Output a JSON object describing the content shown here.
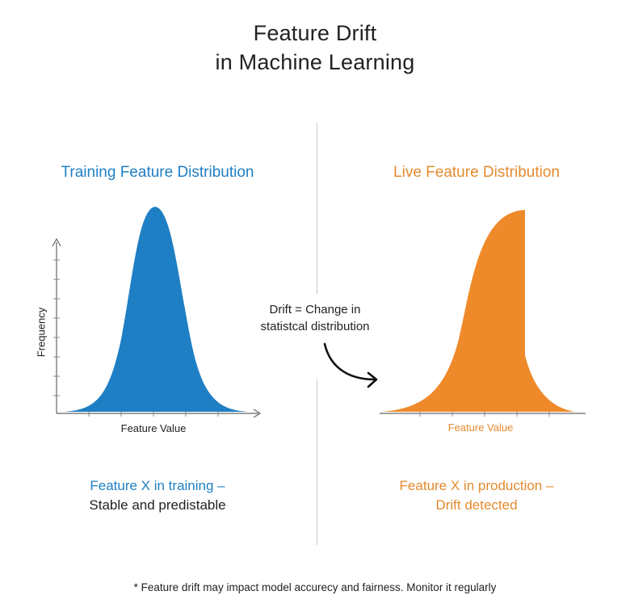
{
  "title": {
    "line1": "Feature Drift",
    "line2": "in Machine Learning"
  },
  "left_panel": {
    "title": "Training Feature Distribution",
    "y_label": "Frequency",
    "x_label": "Feature Value",
    "caption_highlight": "Feature X in training –",
    "caption_rest": "Stable and predistable",
    "color": "#1f7fc4"
  },
  "right_panel": {
    "title": "Live Feature Distribution",
    "x_label": "Feature Value",
    "caption_line1": "Feature X in production –",
    "caption_line2": "Drift detected",
    "color": "#e48a2f"
  },
  "drift_note": {
    "line1": "Drift = Change in",
    "line2": "statistcal distribution",
    "arrow_icon": "curved-arrow-icon"
  },
  "footnote": "* Feature drift may impact model accurecy and fairness. Monitor it regularly"
}
